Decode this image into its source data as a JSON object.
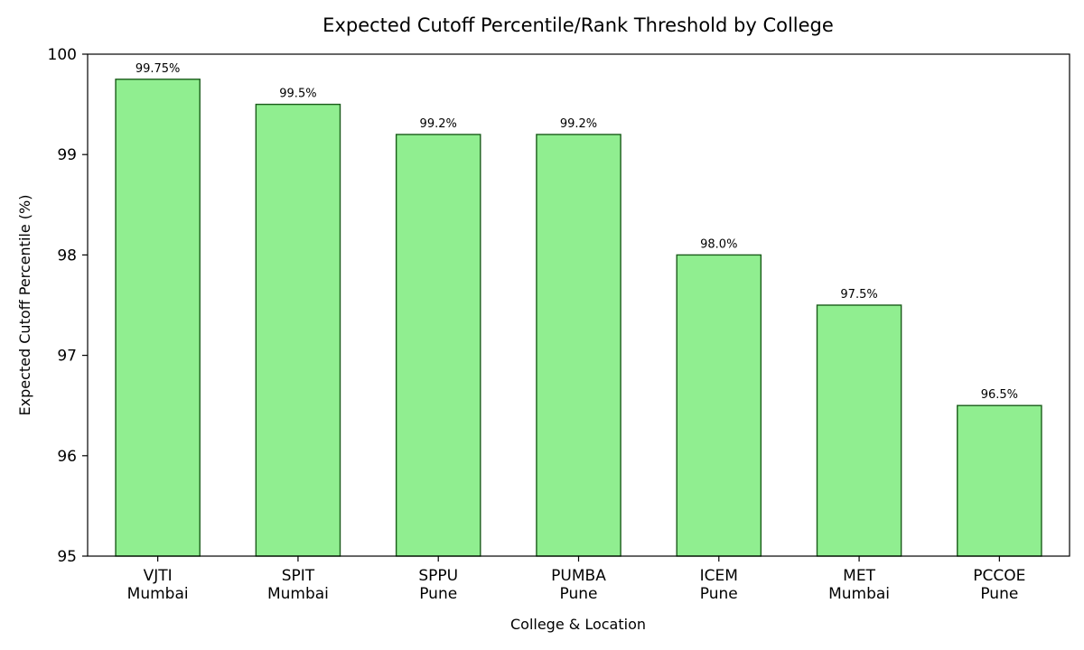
{
  "chart_data": {
    "type": "bar",
    "title": "Expected Cutoff Percentile/Rank Threshold by College",
    "xlabel": "College & Location",
    "ylabel": "Expected Cutoff Percentile (%)",
    "ylim": [
      95,
      100
    ],
    "yticks": [
      "95",
      "96",
      "97",
      "98",
      "99",
      "100"
    ],
    "grid": false,
    "categories": [
      [
        "VJTI",
        "Mumbai"
      ],
      [
        "SPIT",
        "Mumbai"
      ],
      [
        "SPPU",
        "Pune"
      ],
      [
        "PUMBA",
        "Pune"
      ],
      [
        "ICEM",
        "Pune"
      ],
      [
        "MET",
        "Mumbai"
      ],
      [
        "PCCOE",
        "Pune"
      ]
    ],
    "values": [
      99.75,
      99.5,
      99.2,
      99.2,
      98.0,
      97.5,
      96.5
    ],
    "data_labels": [
      "99.75%",
      "99.5%",
      "99.2%",
      "99.2%",
      "98.0%",
      "97.5%",
      "96.5%"
    ],
    "bar_color": "#90ee90",
    "bar_edge_color": "#1a5c1a"
  }
}
